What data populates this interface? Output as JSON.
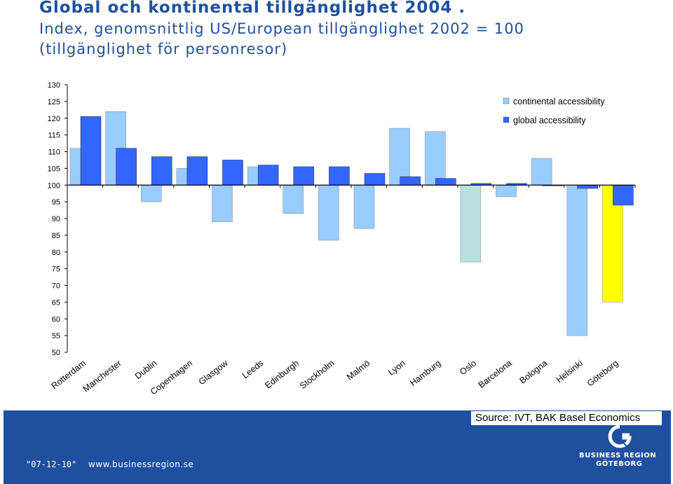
{
  "title": {
    "line1": "Global och kontinental tillgänglighet 2004 .",
    "line2": "Index, genomsnittlig US/European tillgänglighet 2002 = 100",
    "line3": "(tillgänglighet för personresor)"
  },
  "chart_data": {
    "type": "bar",
    "baseline": 100,
    "ylim": [
      50,
      130
    ],
    "yticks": [
      130,
      125,
      120,
      115,
      110,
      105,
      100,
      95,
      90,
      85,
      80,
      75,
      70,
      65,
      60,
      55,
      50
    ],
    "categories": [
      "Rotterdam",
      "Manchester",
      "Dublin",
      "Copenhagen",
      "Glasgow",
      "Leeds",
      "Edinburgh",
      "Stockholm",
      "Malmö",
      "Lyon",
      "Hamburg",
      "Oslo",
      "Barcelona",
      "Bologna",
      "Helsinki",
      "Göteborg"
    ],
    "series": [
      {
        "name": "continental accessibility",
        "color": "#99ccff",
        "values": [
          111,
          122,
          95,
          105,
          89,
          105.5,
          91.5,
          83.5,
          87,
          117,
          116,
          77,
          96.5,
          108,
          55,
          65
        ]
      },
      {
        "name": "global accessibility",
        "color": "#3366ff",
        "values": [
          120.5,
          111,
          108.5,
          108.5,
          107.5,
          106,
          105.5,
          105.5,
          103.5,
          102.5,
          102,
          100.5,
          100.5,
          100,
          99,
          94
        ]
      }
    ],
    "special_colors": {
      "Oslo": "#b8e0e0",
      "Göteborg": "#ffff00"
    },
    "legend_position": "top-right"
  },
  "footer": {
    "source": "Source: IVT, BAK Basel Economics",
    "date": "\"07-12-10\"",
    "url": "www.businessregion.se",
    "logo_line1": "BUSINESS REGION",
    "logo_line2": "GÖTEBORG"
  }
}
